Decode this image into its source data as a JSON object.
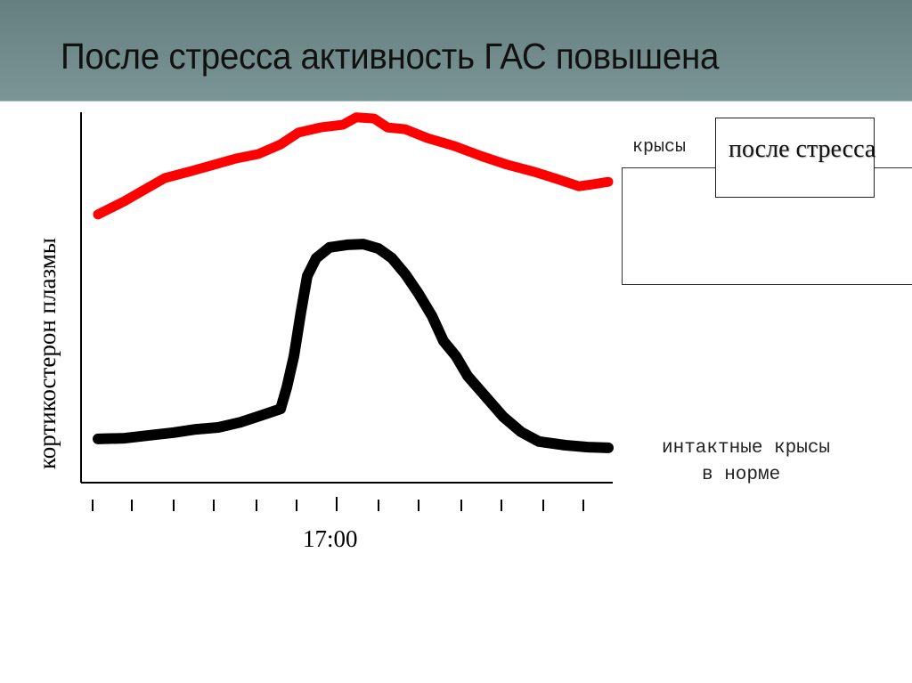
{
  "slide": {
    "title": "После стресса активность ГАС повышена",
    "header_color": "#6f8a8b"
  },
  "chart_data": {
    "type": "line",
    "title": "После стресса активность ГАС повышена",
    "xlabel": "",
    "ylabel": "кортикостерон плазмы",
    "x_tick_count": 13,
    "x_tick_labels": [
      "",
      "",
      "",
      "",
      "",
      "",
      "17:00",
      "",
      "",
      "",
      "",
      "",
      ""
    ],
    "x_tick_positions": [
      104,
      148,
      195,
      240,
      288,
      333,
      378,
      425,
      470,
      518,
      563,
      610,
      655
    ],
    "ylim": [
      0,
      100
    ],
    "grid": false,
    "legend_position": "right",
    "units_note": "y values are relative (0 = x-axis, 100 = top of y-axis); x in pixel positions along the time axis",
    "series": [
      {
        "name": "крысы после стресса",
        "color": "#ff0000",
        "points": [
          [
            110,
            72.4
          ],
          [
            140,
            76.0
          ],
          [
            160,
            78.8
          ],
          [
            185,
            82.2
          ],
          [
            215,
            84.1
          ],
          [
            240,
            85.8
          ],
          [
            265,
            87.5
          ],
          [
            290,
            88.7
          ],
          [
            315,
            91.3
          ],
          [
            335,
            94.5
          ],
          [
            360,
            95.9
          ],
          [
            385,
            96.6
          ],
          [
            400,
            98.6
          ],
          [
            420,
            98.3
          ],
          [
            435,
            95.9
          ],
          [
            455,
            95.4
          ],
          [
            480,
            93.0
          ],
          [
            510,
            90.9
          ],
          [
            540,
            88.2
          ],
          [
            570,
            85.8
          ],
          [
            600,
            83.9
          ],
          [
            625,
            82.0
          ],
          [
            650,
            80.0
          ],
          [
            665,
            80.5
          ],
          [
            683,
            81.2
          ]
        ]
      },
      {
        "name": "интактные крысы в норме",
        "color": "#000000",
        "points": [
          [
            110,
            11.8
          ],
          [
            140,
            12.0
          ],
          [
            165,
            12.7
          ],
          [
            195,
            13.5
          ],
          [
            220,
            14.4
          ],
          [
            245,
            14.9
          ],
          [
            270,
            16.3
          ],
          [
            295,
            18.3
          ],
          [
            315,
            19.9
          ],
          [
            322,
            25.7
          ],
          [
            330,
            34.1
          ],
          [
            338,
            46.2
          ],
          [
            345,
            55.8
          ],
          [
            355,
            60.6
          ],
          [
            370,
            63.5
          ],
          [
            390,
            64.2
          ],
          [
            408,
            64.4
          ],
          [
            425,
            63.2
          ],
          [
            440,
            60.6
          ],
          [
            455,
            56.3
          ],
          [
            470,
            51.0
          ],
          [
            485,
            45.0
          ],
          [
            498,
            38.2
          ],
          [
            512,
            34.1
          ],
          [
            525,
            28.8
          ],
          [
            545,
            23.3
          ],
          [
            565,
            17.8
          ],
          [
            585,
            13.7
          ],
          [
            605,
            11.1
          ],
          [
            635,
            10.1
          ],
          [
            660,
            9.6
          ],
          [
            683,
            9.4
          ]
        ]
      }
    ]
  },
  "legend": {
    "stress_prefix": "крысы",
    "stress_label": "после стресса",
    "normal_line1": "интактные крысы",
    "normal_line2": "в норме"
  },
  "axes": {
    "ylabel": "кортикостерон плазмы",
    "x_highlight_label": "17:00"
  }
}
